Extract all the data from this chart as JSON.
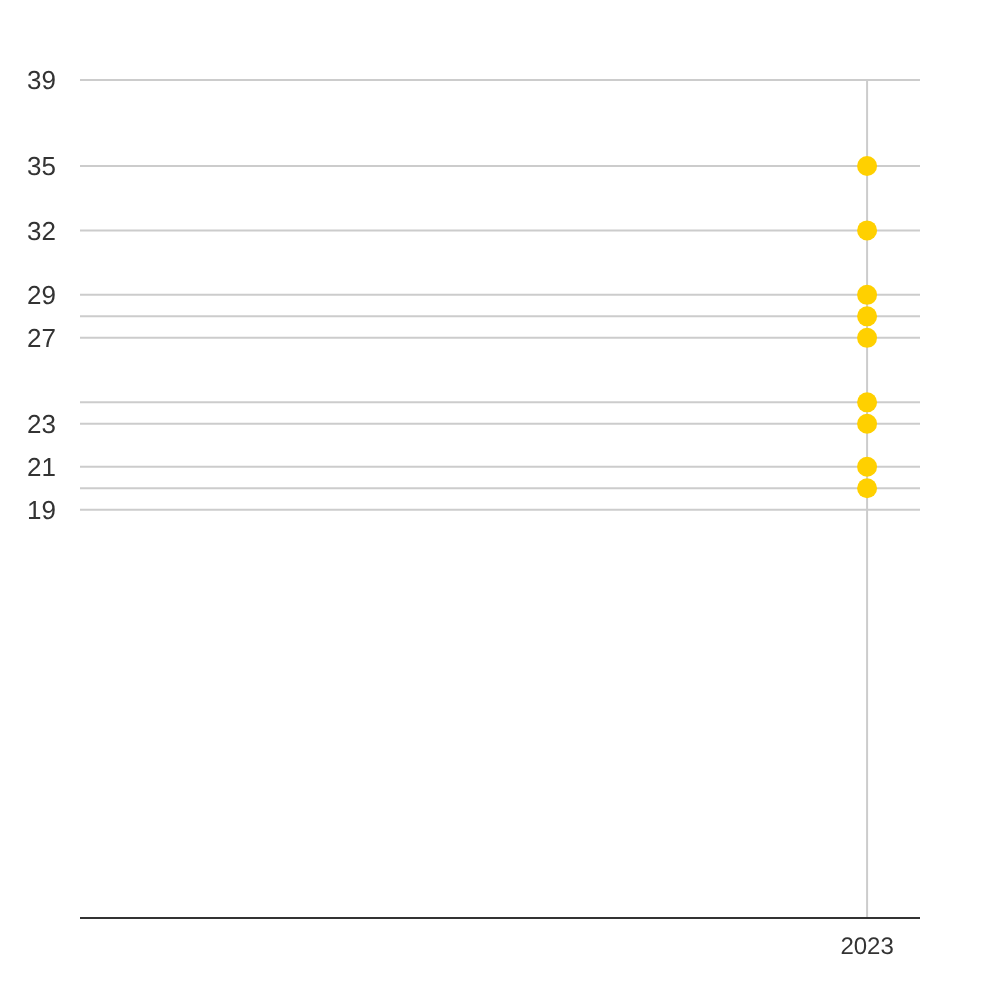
{
  "chart_data": {
    "type": "scatter",
    "categories": [
      "2023"
    ],
    "series": [
      {
        "color": "#ffd000",
        "values": [
          35
        ]
      },
      {
        "color": "#ffd000",
        "values": [
          32
        ]
      },
      {
        "color": "#ffd000",
        "values": [
          29
        ]
      },
      {
        "color": "#ffd000",
        "values": [
          28
        ]
      },
      {
        "color": "#ffd000",
        "values": [
          27
        ]
      },
      {
        "color": "#ffd000",
        "values": [
          24
        ]
      },
      {
        "color": "#ffd000",
        "values": [
          23
        ]
      },
      {
        "color": "#ffd000",
        "values": [
          21
        ]
      },
      {
        "color": "#ffd000",
        "values": [
          20
        ]
      }
    ],
    "ylim": [
      0,
      39
    ],
    "yticks": [
      39,
      35,
      32,
      29,
      {
        "value": 28,
        "label": null
      },
      27,
      {
        "value": 24,
        "label": null
      },
      23,
      21,
      {
        "value": 20,
        "label": null
      },
      19
    ],
    "grid": true,
    "marker": "circle"
  }
}
